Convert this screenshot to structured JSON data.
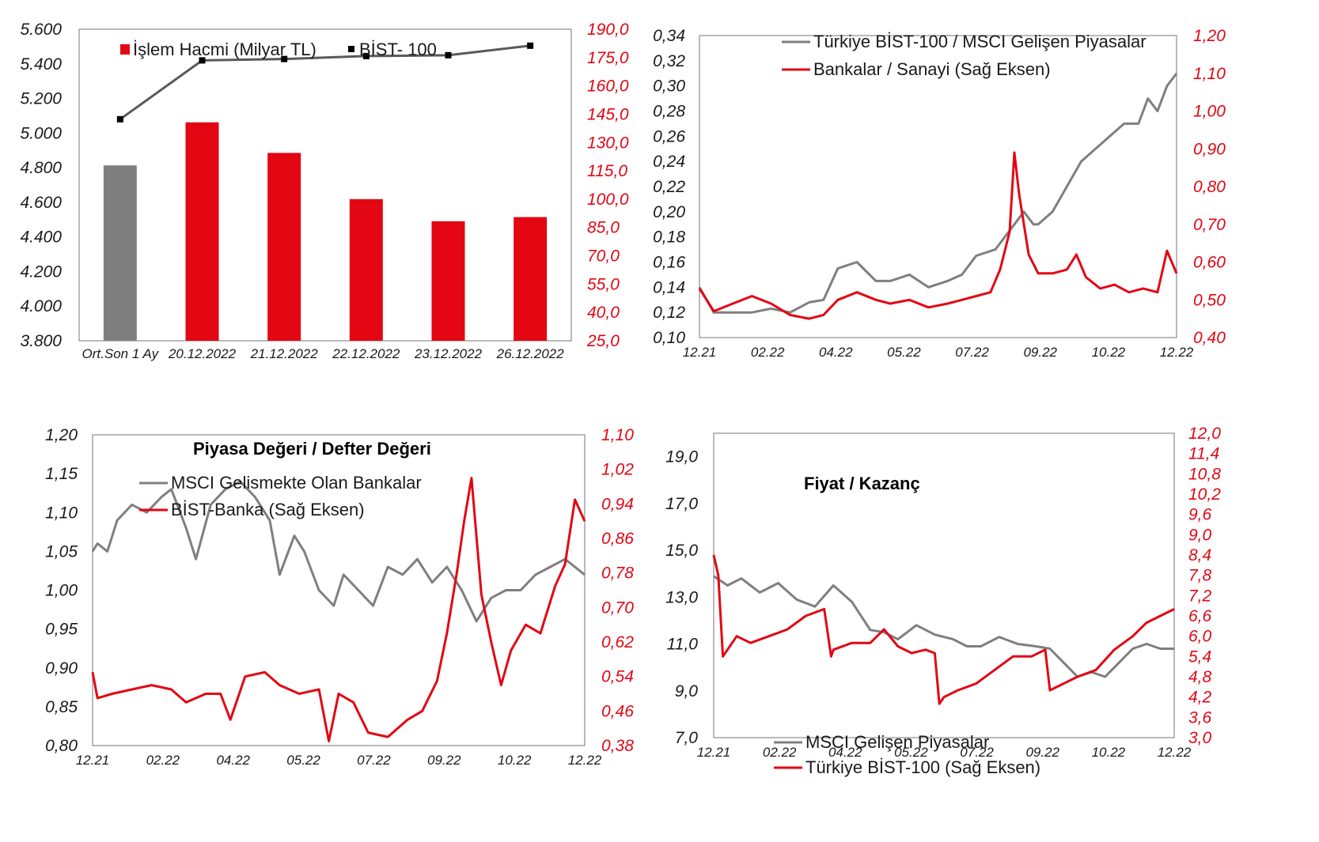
{
  "colors": {
    "gray": "#7f7f7f",
    "red": "#e30613",
    "line_dark": "#595959",
    "marker": "#000000"
  },
  "chart_data": [
    {
      "type": "bar",
      "title": "",
      "categories": [
        "Ort.Son 1 Ay",
        "20.12.2022",
        "21.12.2022",
        "22.12.2022",
        "23.12.2022",
        "26.12.2022"
      ],
      "series": [
        {
          "name": "İşlem Hacmi (Milyar TL)",
          "axis": "right",
          "values": [
            117.9,
            140.7,
            124.5,
            100.0,
            88.3,
            90.5
          ]
        },
        {
          "name": "BİST- 100",
          "axis": "left",
          "kind": "line",
          "values": [
            5080,
            5420,
            5428,
            5445,
            5450,
            5505
          ]
        }
      ],
      "left_axis": {
        "min": 3800,
        "max": 5600,
        "ticks": [
          "3.800",
          "4.000",
          "4.200",
          "4.400",
          "4.600",
          "4.800",
          "5.000",
          "5.200",
          "5.400",
          "5.600"
        ]
      },
      "right_axis": {
        "min": 25,
        "max": 190,
        "ticks": [
          "25,0",
          "40,0",
          "55,0",
          "70,0",
          "85,0",
          "100,0",
          "115,0",
          "130,0",
          "145,0",
          "160,0",
          "175,0",
          "190,0"
        ]
      },
      "legend_position": "top"
    },
    {
      "type": "line",
      "title": "",
      "x_ticks": [
        "12.21",
        "02.22",
        "04.22",
        "05.22",
        "07.22",
        "09.22",
        "10.22",
        "12.22"
      ],
      "series": [
        {
          "name": "Türkiye BİST-100 / MSCI Gelişen Piyasalar",
          "axis": "left",
          "x": [
            0,
            0.03,
            0.07,
            0.11,
            0.15,
            0.19,
            0.23,
            0.26,
            0.29,
            0.33,
            0.37,
            0.4,
            0.44,
            0.48,
            0.52,
            0.55,
            0.58,
            0.62,
            0.66,
            0.68,
            0.7,
            0.71,
            0.74,
            0.77,
            0.8,
            0.83,
            0.86,
            0.89,
            0.92,
            0.94,
            0.96,
            0.98,
            1.0
          ],
          "y": [
            0.14,
            0.12,
            0.12,
            0.12,
            0.123,
            0.12,
            0.128,
            0.13,
            0.155,
            0.16,
            0.145,
            0.145,
            0.15,
            0.14,
            0.145,
            0.15,
            0.165,
            0.17,
            0.19,
            0.2,
            0.19,
            0.19,
            0.2,
            0.22,
            0.24,
            0.25,
            0.26,
            0.27,
            0.27,
            0.29,
            0.28,
            0.3,
            0.31
          ]
        },
        {
          "name": "Bankalar / Sanayi (Sağ Eksen)",
          "axis": "right",
          "x": [
            0,
            0.03,
            0.07,
            0.11,
            0.15,
            0.19,
            0.23,
            0.26,
            0.29,
            0.33,
            0.37,
            0.4,
            0.44,
            0.48,
            0.52,
            0.55,
            0.58,
            0.61,
            0.63,
            0.65,
            0.66,
            0.67,
            0.69,
            0.71,
            0.74,
            0.77,
            0.79,
            0.81,
            0.84,
            0.87,
            0.9,
            0.93,
            0.96,
            0.98,
            1.0
          ],
          "y": [
            0.53,
            0.47,
            0.49,
            0.51,
            0.49,
            0.46,
            0.45,
            0.46,
            0.5,
            0.52,
            0.5,
            0.49,
            0.5,
            0.48,
            0.49,
            0.5,
            0.51,
            0.52,
            0.58,
            0.68,
            0.89,
            0.78,
            0.62,
            0.57,
            0.57,
            0.58,
            0.62,
            0.56,
            0.53,
            0.54,
            0.52,
            0.53,
            0.52,
            0.63,
            0.57
          ]
        }
      ],
      "left_axis": {
        "min": 0.1,
        "max": 0.34,
        "ticks": [
          "0,10",
          "0,12",
          "0,14",
          "0,16",
          "0,18",
          "0,20",
          "0,22",
          "0,24",
          "0,26",
          "0,28",
          "0,30",
          "0,32",
          "0,34"
        ]
      },
      "right_axis": {
        "min": 0.4,
        "max": 1.2,
        "ticks": [
          "0,40",
          "0,50",
          "0,60",
          "0,70",
          "0,80",
          "0,90",
          "1,00",
          "1,10",
          "1,20"
        ]
      },
      "legend_position": "top-left"
    },
    {
      "type": "line",
      "title": "Piyasa Değeri / Defter Değeri",
      "x_ticks": [
        "12.21",
        "02.22",
        "04.22",
        "05.22",
        "07.22",
        "09.22",
        "10.22",
        "12.22"
      ],
      "series": [
        {
          "name": "MSCI Gelismekte Olan Bankalar",
          "axis": "left",
          "x": [
            0,
            0.01,
            0.03,
            0.05,
            0.08,
            0.11,
            0.14,
            0.16,
            0.19,
            0.21,
            0.24,
            0.27,
            0.3,
            0.33,
            0.36,
            0.38,
            0.41,
            0.43,
            0.46,
            0.49,
            0.51,
            0.54,
            0.57,
            0.6,
            0.63,
            0.66,
            0.69,
            0.72,
            0.75,
            0.78,
            0.81,
            0.84,
            0.87,
            0.9,
            0.93,
            0.96,
            1.0
          ],
          "y": [
            1.05,
            1.06,
            1.05,
            1.09,
            1.11,
            1.1,
            1.12,
            1.13,
            1.08,
            1.04,
            1.11,
            1.13,
            1.14,
            1.12,
            1.09,
            1.02,
            1.07,
            1.05,
            1.0,
            0.98,
            1.02,
            1.0,
            0.98,
            1.03,
            1.02,
            1.04,
            1.01,
            1.03,
            1.0,
            0.96,
            0.99,
            1.0,
            1.0,
            1.02,
            1.03,
            1.04,
            1.02
          ]
        },
        {
          "name": "BİST-Banka (Sağ Eksen)",
          "axis": "right",
          "x": [
            0,
            0.01,
            0.04,
            0.08,
            0.12,
            0.16,
            0.19,
            0.23,
            0.26,
            0.28,
            0.31,
            0.35,
            0.38,
            0.42,
            0.46,
            0.48,
            0.5,
            0.53,
            0.56,
            0.6,
            0.64,
            0.67,
            0.7,
            0.72,
            0.74,
            0.755,
            0.77,
            0.79,
            0.81,
            0.83,
            0.85,
            0.88,
            0.91,
            0.94,
            0.96,
            0.98,
            1.0
          ],
          "y": [
            0.55,
            0.49,
            0.5,
            0.51,
            0.52,
            0.51,
            0.48,
            0.5,
            0.5,
            0.44,
            0.54,
            0.55,
            0.52,
            0.5,
            0.51,
            0.39,
            0.5,
            0.48,
            0.41,
            0.4,
            0.44,
            0.46,
            0.53,
            0.64,
            0.78,
            0.9,
            1.0,
            0.73,
            0.62,
            0.52,
            0.6,
            0.66,
            0.64,
            0.75,
            0.8,
            0.95,
            0.9
          ]
        }
      ],
      "left_axis": {
        "min": 0.8,
        "max": 1.2,
        "ticks": [
          "0,80",
          "0,85",
          "0,90",
          "0,95",
          "1,00",
          "1,05",
          "1,10",
          "1,15",
          "1,20"
        ]
      },
      "right_axis": {
        "min": 0.38,
        "max": 1.1,
        "ticks": [
          "0,38",
          "0,46",
          "0,54",
          "0,62",
          "0,70",
          "0,78",
          "0,86",
          "0,94",
          "1,02",
          "1,10"
        ]
      },
      "legend_position": "top-left"
    },
    {
      "type": "line",
      "title": "Fiyat / Kazanç",
      "x_ticks": [
        "12.21",
        "02.22",
        "04.22",
        "05.22",
        "07.22",
        "09.22",
        "10.22",
        "12.22"
      ],
      "series": [
        {
          "name": "MSCI Gelişen Piyasalar",
          "axis": "left",
          "x": [
            0,
            0.03,
            0.06,
            0.1,
            0.14,
            0.18,
            0.22,
            0.26,
            0.3,
            0.34,
            0.37,
            0.4,
            0.44,
            0.48,
            0.52,
            0.55,
            0.58,
            0.62,
            0.66,
            0.7,
            0.73,
            0.76,
            0.79,
            0.82,
            0.85,
            0.88,
            0.91,
            0.94,
            0.97,
            1.0
          ],
          "y": [
            13.9,
            13.5,
            13.8,
            13.2,
            13.6,
            12.9,
            12.6,
            13.5,
            12.8,
            11.6,
            11.5,
            11.2,
            11.8,
            11.4,
            11.2,
            10.9,
            10.9,
            11.3,
            11.0,
            10.9,
            10.8,
            10.2,
            9.6,
            9.8,
            9.6,
            10.2,
            10.8,
            11.0,
            10.8,
            10.8
          ]
        },
        {
          "name": "Türkiye BİST-100 (Sağ Eksen)",
          "axis": "right",
          "x": [
            0,
            0.01,
            0.02,
            0.05,
            0.08,
            0.12,
            0.16,
            0.2,
            0.24,
            0.255,
            0.26,
            0.3,
            0.34,
            0.37,
            0.4,
            0.43,
            0.46,
            0.48,
            0.49,
            0.5,
            0.53,
            0.57,
            0.61,
            0.65,
            0.69,
            0.72,
            0.73,
            0.76,
            0.79,
            0.83,
            0.87,
            0.91,
            0.94,
            0.97,
            1.0
          ],
          "y": [
            8.4,
            7.8,
            5.4,
            6.0,
            5.8,
            6.0,
            6.2,
            6.6,
            6.8,
            5.4,
            5.6,
            5.8,
            5.8,
            6.2,
            5.7,
            5.5,
            5.6,
            5.5,
            4.0,
            4.2,
            4.4,
            4.6,
            5.0,
            5.4,
            5.4,
            5.6,
            4.4,
            4.6,
            4.8,
            5.0,
            5.6,
            6.0,
            6.4,
            6.6,
            6.8
          ]
        }
      ],
      "left_axis": {
        "min": 7.0,
        "max": 20.0,
        "ticks": [
          "7,0",
          "9,0",
          "11,0",
          "13,0",
          "15,0",
          "17,0",
          "19,0"
        ]
      },
      "right_axis": {
        "min": 3.0,
        "max": 12.0,
        "ticks": [
          "3,0",
          "3,6",
          "4,2",
          "4,8",
          "5,4",
          "6,0",
          "6,6",
          "7,2",
          "7,8",
          "8,4",
          "9,0",
          "9,6",
          "10,2",
          "10,8",
          "11,4",
          "12,0"
        ]
      },
      "legend_position": "bottom-left"
    }
  ]
}
